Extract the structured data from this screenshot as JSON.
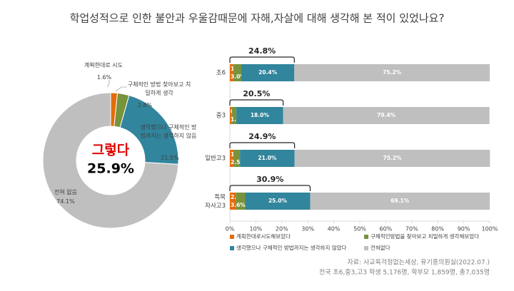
{
  "title": "학업성적으로 인한 불안과 우울감때문에 자해,자살에 대해 생각해 본 적이 있었나요?",
  "source": [
    "자료: 사교육걱정없는세상, 유기홍의원실(2022.07.)",
    "전국 초6,중3,고3 학생 5,176명, 학부모 1,859명, 총7,035명"
  ],
  "chart_data": [
    {
      "type": "pie",
      "categories": [
        "계획한대로 시도",
        "구체적인 방법 찾아보고 치밀하게 생각",
        "생각했으나 구체적인 방법까지는 생각하지 않음",
        "전혀 없음"
      ],
      "values": [
        1.6,
        2.8,
        21.5,
        74.1
      ],
      "value_labels": [
        "1.6%",
        "2.8%",
        "21.5%",
        "74.1%"
      ],
      "colors": [
        "#e46c0a",
        "#77933c",
        "#31859c",
        "#bfbfbf"
      ],
      "center_text": "그렇다",
      "center_value": {
        "value": 25.9,
        "label": "25.9%"
      }
    },
    {
      "type": "stacked-bar-horizontal",
      "categories": [
        "초6",
        "중3",
        "일반고3",
        "특목 자사고3"
      ],
      "series": [
        {
          "name": "계획한대로시도해보았다",
          "color": "#e46c0a",
          "values": [
            1.4,
            0.8,
            1.4,
            2.3
          ],
          "value_labels": [
            "1.4%",
            "0.8%",
            "1.4%",
            "2.3%"
          ]
        },
        {
          "name": "구체적인방법을 찾아보고 치밀하게 생각해보았다",
          "color": "#77933c",
          "values": [
            3.0,
            1.7,
            2.5,
            3.6
          ],
          "value_labels": [
            "3.0%",
            "1.7%",
            "2.5%",
            "3.6%"
          ]
        },
        {
          "name": "생각했으나 구체적인 방법까지는 생각하지 않았다",
          "color": "#31859c",
          "values": [
            20.4,
            18.0,
            21.0,
            25.0
          ],
          "value_labels": [
            "20.4%",
            "18.0%",
            "21.0%",
            "25.0%"
          ]
        },
        {
          "name": "전혀없다",
          "color": "#bfbfbf",
          "values": [
            75.2,
            79.4,
            75.2,
            69.1
          ],
          "value_labels": [
            "75.2%",
            "79.4%",
            "75.2%",
            "69.1%"
          ]
        }
      ],
      "totals": {
        "values": [
          24.8,
          20.5,
          24.9,
          30.9
        ],
        "value_labels": [
          "24.8%",
          "20.5%",
          "24.9%",
          "30.9%"
        ]
      },
      "xlim": [
        0,
        100
      ],
      "xticks": [
        {
          "value": 0,
          "label": "0%"
        },
        {
          "value": 10,
          "label": "10%"
        },
        {
          "value": 20,
          "label": "20%"
        },
        {
          "value": 30,
          "label": "30%"
        },
        {
          "value": 40,
          "label": "40%"
        },
        {
          "value": 50,
          "label": "50%"
        },
        {
          "value": 60,
          "label": "60%"
        },
        {
          "value": 70,
          "label": "70%"
        },
        {
          "value": 80,
          "label": "80%"
        },
        {
          "value": 90,
          "label": "90%"
        },
        {
          "value": 100,
          "label": "100%"
        }
      ]
    }
  ]
}
